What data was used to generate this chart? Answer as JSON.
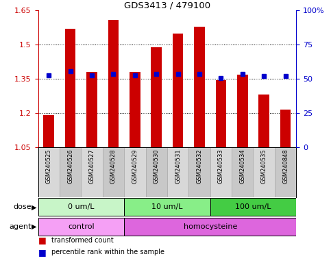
{
  "title": "GDS3413 / 479100",
  "samples": [
    "GSM240525",
    "GSM240526",
    "GSM240527",
    "GSM240528",
    "GSM240529",
    "GSM240530",
    "GSM240531",
    "GSM240532",
    "GSM240533",
    "GSM240534",
    "GSM240535",
    "GSM240848"
  ],
  "red_values": [
    1.19,
    1.57,
    1.38,
    1.61,
    1.38,
    1.49,
    1.55,
    1.58,
    1.345,
    1.37,
    1.28,
    1.215
  ],
  "blue_values": [
    0.525,
    0.555,
    0.525,
    0.535,
    0.525,
    0.535,
    0.535,
    0.535,
    0.505,
    0.535,
    0.52,
    0.52
  ],
  "ymin": 1.05,
  "ymax": 1.65,
  "yticks_left": [
    1.05,
    1.2,
    1.35,
    1.5,
    1.65
  ],
  "yticks_right_vals": [
    0,
    25,
    50,
    75,
    100
  ],
  "yticks_right_pos": [
    0.0,
    0.25,
    0.5,
    0.75,
    1.0
  ],
  "dose_groups": [
    {
      "label": "0 um/L",
      "start": 0,
      "end": 4,
      "color": "#c8f5c8"
    },
    {
      "label": "10 um/L",
      "start": 4,
      "end": 8,
      "color": "#88ee88"
    },
    {
      "label": "100 um/L",
      "start": 8,
      "end": 12,
      "color": "#44cc44"
    }
  ],
  "agent_groups": [
    {
      "label": "control",
      "start": 0,
      "end": 4,
      "color": "#f5a0f5"
    },
    {
      "label": "homocysteine",
      "start": 4,
      "end": 12,
      "color": "#dd66dd"
    }
  ],
  "bar_color": "#cc0000",
  "dot_color": "#0000cc",
  "left_axis_color": "#cc0000",
  "right_axis_color": "#0000cc",
  "bar_width": 0.5,
  "label_bg_color": "#d0d0d0"
}
